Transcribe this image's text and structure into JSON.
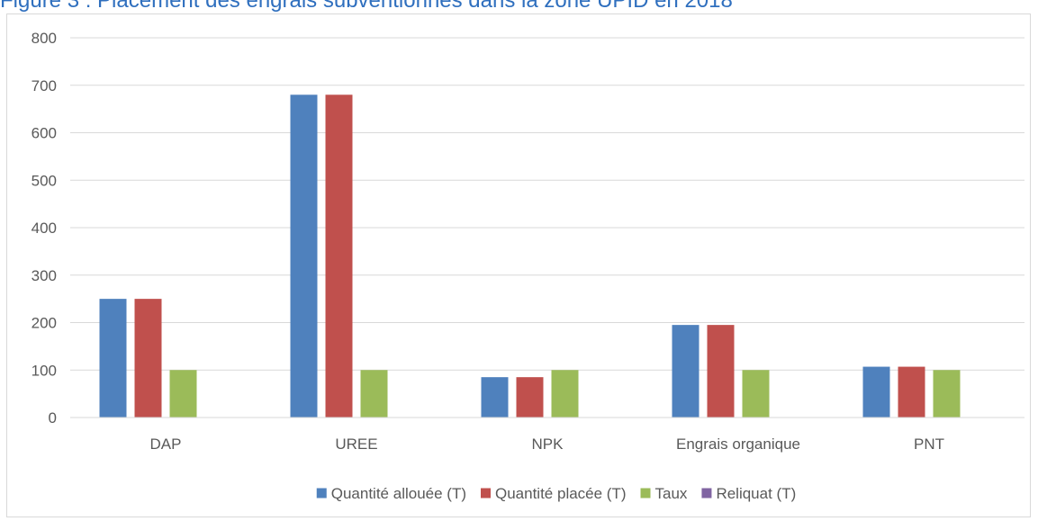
{
  "figure": {
    "title": "Figure 3 : Placement des engrais subventionnés dans la zone UPID en 2018"
  },
  "chart_data": {
    "type": "bar",
    "title": "",
    "xlabel": "",
    "ylabel": "",
    "ylim": [
      0,
      800
    ],
    "yticks": [
      0,
      100,
      200,
      300,
      400,
      500,
      600,
      700,
      800
    ],
    "grid": true,
    "legend_position": "bottom",
    "categories": [
      "DAP",
      "UREE",
      "NPK",
      "Engrais organique",
      "PNT"
    ],
    "series": [
      {
        "name": "Quantité allouée (T)",
        "color": "#4f81bd",
        "values": [
          250,
          680,
          85,
          195,
          107
        ]
      },
      {
        "name": "Quantité placée (T)",
        "color": "#c0504d",
        "values": [
          250,
          680,
          85,
          195,
          107
        ]
      },
      {
        "name": "Taux",
        "color": "#9bbb59",
        "values": [
          100,
          100,
          100,
          100,
          100
        ]
      },
      {
        "name": "Reliquat (T)",
        "color": "#8064a2",
        "values": [
          0,
          0,
          0,
          0,
          0
        ]
      }
    ]
  }
}
